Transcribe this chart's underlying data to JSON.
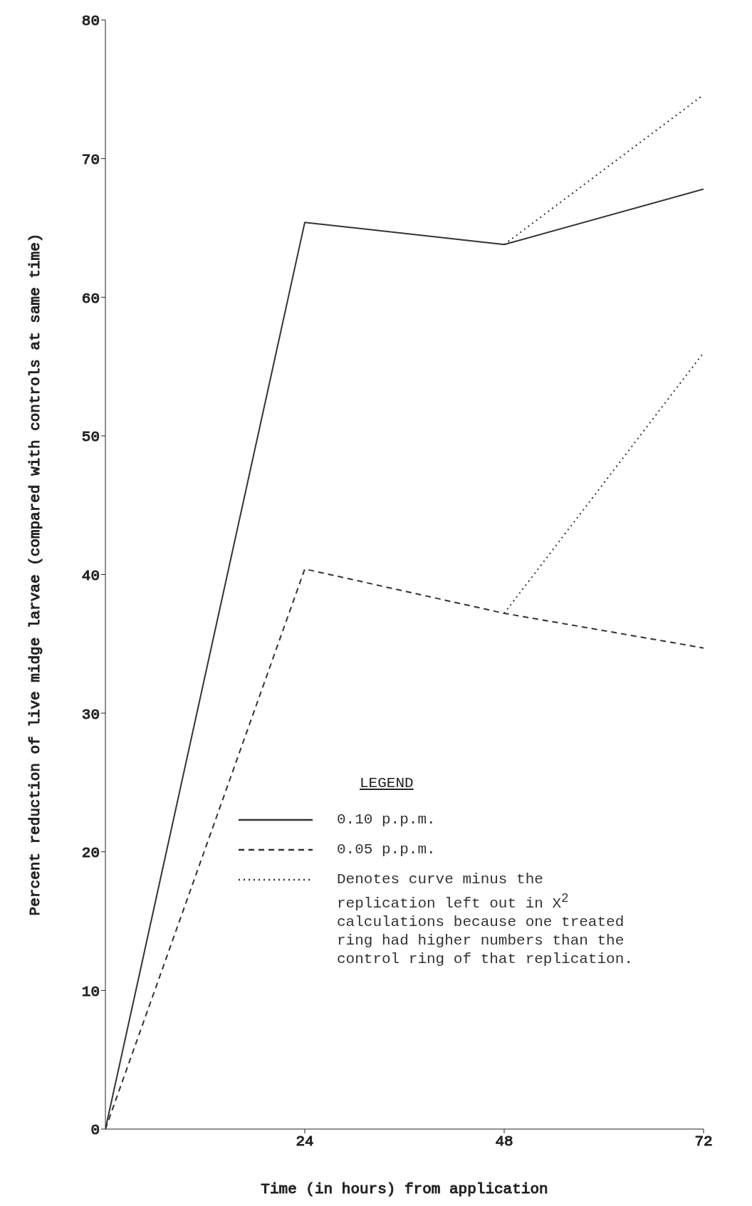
{
  "chart_data": {
    "type": "line",
    "xlabel": "Time (in hours) from application",
    "ylabel": "Percent reduction of live midge larvae (compared with controls at same time)",
    "legend_title": "LEGEND",
    "xlim": [
      0,
      72
    ],
    "xticks": [
      24,
      48,
      72
    ],
    "ylim": [
      0,
      80
    ],
    "yticks": [
      0,
      10,
      20,
      30,
      40,
      50,
      60,
      70,
      80
    ],
    "grid": false,
    "legend": "bottom right",
    "marker": "none",
    "series": [
      {
        "name": "0.10 p.p.m.",
        "color": "#333333",
        "line_style": "solid",
        "x": [
          0,
          24,
          48,
          72
        ],
        "values": [
          0,
          65.4,
          63.8,
          67.8
        ]
      },
      {
        "name": "0.05 p.p.m.",
        "color": "#333333",
        "line_style": "dashed",
        "x": [
          0,
          24,
          48,
          72
        ],
        "values": [
          0,
          40.4,
          37.2,
          34.7
        ]
      },
      {
        "name": "Denotes curve minus the replication left out in X$^{2}$ calculations because one treated ring had higher numbers than the control ring of that replication.",
        "color": "#333333",
        "line_style": "dotted",
        "x": [
          48,
          72
        ],
        "values": [
          63.8,
          74.6
        ]
      },
      {
        "color": "#333333",
        "line_style": "dotted",
        "x": [
          48,
          72
        ],
        "values": [
          37.2,
          56
        ]
      }
    ]
  }
}
